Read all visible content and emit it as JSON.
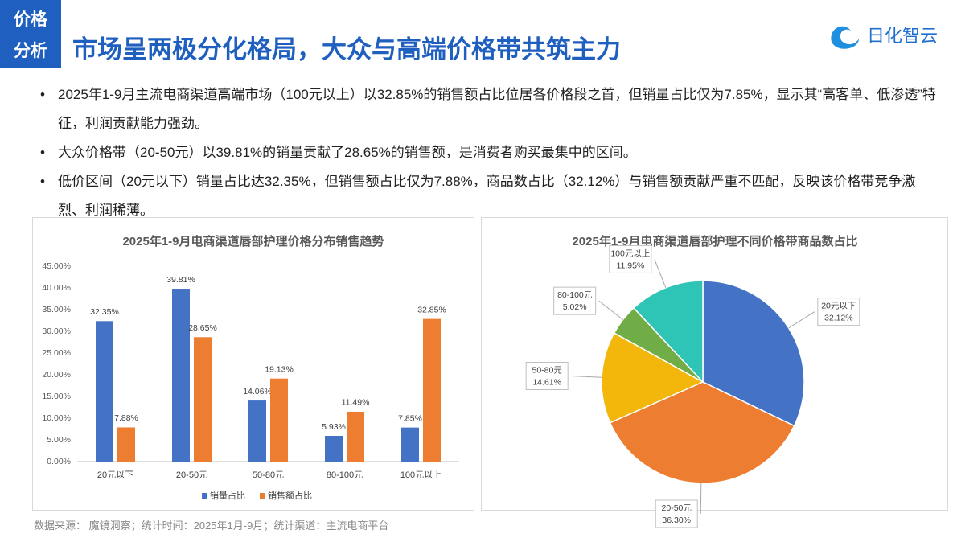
{
  "header": {
    "tag": [
      "价格",
      "分析"
    ],
    "title": "市场呈两极分化格局，大众与高端价格带共筑主力",
    "logo": "日化智云"
  },
  "bullets": [
    "2025年1-9月主流电商渠道高端市场（100元以上）以32.85%的销售额占比位居各价格段之首，但销量占比仅为7.85%，显示其“高客单、低渗透”特征，利润贡献能力强劲。",
    "大众价格带（20-50元）以39.81%的销量贡献了28.65%的销售额，是消费者购买最集中的区间。",
    "低价区间（20元以下）销量占比达32.35%，但销售额占比仅为7.88%，商品数占比（32.12%）与销售额贡献严重不匹配，反映该价格带竞争激烈、利润稀薄。"
  ],
  "chart_data": [
    {
      "type": "bar",
      "title": "2025年1-9月电商渠道唇部护理价格分布销售趋势",
      "categories": [
        "20元以下",
        "20-50元",
        "50-80元",
        "80-100元",
        "100元以上"
      ],
      "series": [
        {
          "name": "销量占比",
          "color": "#4472c4",
          "values": [
            32.35,
            39.81,
            14.06,
            5.93,
            7.85
          ],
          "value_labels": [
            "32.35%",
            "39.81%",
            "14.06%",
            "5.93%",
            "7.85%"
          ]
        },
        {
          "name": "销售额占比",
          "color": "#ed7d31",
          "values": [
            7.88,
            28.65,
            19.13,
            11.49,
            32.85
          ],
          "value_labels": [
            "7.88%",
            "28.65%",
            "19.13%",
            "11.49%",
            "32.85%"
          ]
        }
      ],
      "ylim": [
        0,
        45
      ],
      "yticks": [
        {
          "value": 0,
          "label": "0.00%"
        },
        {
          "value": 5,
          "label": "5.00%"
        },
        {
          "value": 10,
          "label": "10.00%"
        },
        {
          "value": 15,
          "label": "15.00%"
        },
        {
          "value": 20,
          "label": "20.00%"
        },
        {
          "value": 25,
          "label": "25.00%"
        },
        {
          "value": 30,
          "label": "30.00%"
        },
        {
          "value": 35,
          "label": "35.00%"
        },
        {
          "value": 40,
          "label": "40.00%"
        },
        {
          "value": 45,
          "label": "45.00%"
        }
      ],
      "grid": false,
      "legend": "bottom"
    },
    {
      "type": "pie",
      "title": "2025年1-9月电商渠道唇部护理不同价格带商品数占比",
      "categories": [
        "20元以下",
        "20-50元",
        "50-80元",
        "80-100元",
        "100元以上"
      ],
      "values": [
        32.12,
        36.3,
        14.61,
        5.02,
        11.95
      ],
      "value_labels": [
        "32.12%",
        "36.30%",
        "14.61%",
        "5.02%",
        "11.95%"
      ],
      "colors": [
        "#4472c4",
        "#ed7d31",
        "#f2b70a",
        "#70ad47",
        "#2ec4b6"
      ]
    }
  ],
  "source": "数据来源：  魔镜洞察；统计时间：2025年1月-9月；统计渠道：主流电商平台"
}
